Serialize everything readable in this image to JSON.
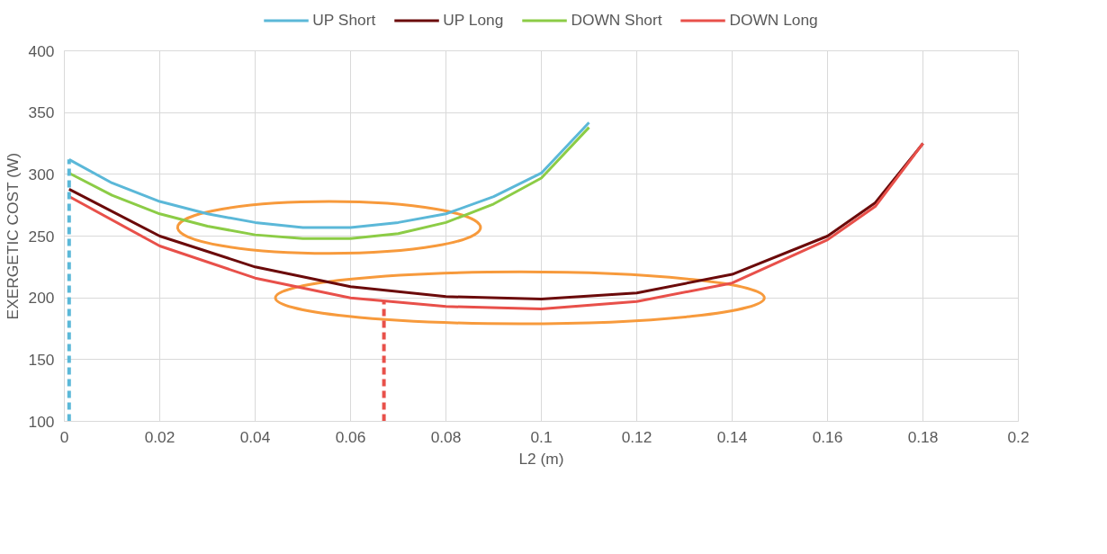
{
  "chart_data": {
    "type": "line",
    "xlabel": "L2 (m)",
    "ylabel": "EXERGETIC COST (W)",
    "xlim": [
      0,
      0.2
    ],
    "xticks": [
      0,
      0.02,
      0.04,
      0.06,
      0.08,
      0.1,
      0.12,
      0.14,
      0.16,
      0.18,
      0.2
    ],
    "ylim": [
      100,
      400
    ],
    "yticks": [
      100,
      150,
      200,
      250,
      300,
      350,
      400
    ],
    "grid": true,
    "legend": "top",
    "marker": "none",
    "line_style": "solid",
    "series": [
      {
        "name": "UP Short",
        "color": "#5bb8d8",
        "x": [
          0.001,
          0.01,
          0.02,
          0.03,
          0.04,
          0.05,
          0.06,
          0.07,
          0.08,
          0.09,
          0.1,
          0.11
        ],
        "values": [
          312,
          293,
          278,
          268,
          261,
          257,
          257,
          261,
          268,
          282,
          301,
          342
        ]
      },
      {
        "name": "UP Long",
        "color": "#6b0a0a",
        "x": [
          0.001,
          0.02,
          0.04,
          0.06,
          0.08,
          0.1,
          0.12,
          0.14,
          0.16,
          0.17,
          0.18
        ],
        "values": [
          288,
          250,
          225,
          209,
          201,
          199,
          204,
          219,
          250,
          277,
          325
        ]
      },
      {
        "name": "DOWN Short",
        "color": "#8ccc46",
        "x": [
          0.001,
          0.01,
          0.02,
          0.03,
          0.04,
          0.05,
          0.06,
          0.07,
          0.08,
          0.09,
          0.1,
          0.11
        ],
        "values": [
          301,
          283,
          268,
          258,
          251,
          248,
          248,
          252,
          261,
          276,
          297,
          338
        ]
      },
      {
        "name": "DOWN Long",
        "color": "#e8504a",
        "x": [
          0.001,
          0.02,
          0.04,
          0.06,
          0.08,
          0.1,
          0.12,
          0.14,
          0.16,
          0.17,
          0.18
        ],
        "values": [
          282,
          242,
          216,
          200,
          193,
          191,
          197,
          212,
          247,
          274,
          325
        ]
      },
      {
        "color": "#5bb8d8",
        "line_style": "dashed",
        "x": [
          0.001,
          0.001
        ],
        "values": [
          100,
          312
        ]
      },
      {
        "color": "#e8504a",
        "line_style": "dashed",
        "x": [
          0.067,
          0.067
        ],
        "values": [
          100,
          197
        ]
      }
    ]
  }
}
